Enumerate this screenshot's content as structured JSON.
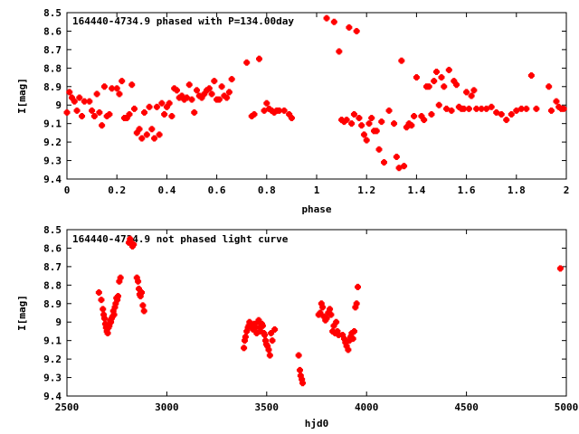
{
  "chart_data": [
    {
      "type": "scatter",
      "title": "164440-4734.9 phased with P=134.00day",
      "xlabel": "phase",
      "ylabel": "I[mag]",
      "xlim": [
        0,
        2
      ],
      "ylim": [
        8.5,
        9.4
      ],
      "y_inverted": true,
      "xticks": [
        0,
        0.2,
        0.4,
        0.6,
        0.8,
        1,
        1.2,
        1.4,
        1.6,
        1.8,
        2
      ],
      "yticks": [
        8.5,
        8.6,
        8.7,
        8.8,
        8.9,
        9,
        9.1,
        9.2,
        9.3,
        9.4
      ],
      "xtick_labels": [
        "0",
        "0.2",
        "0.4",
        "0.6",
        "0.8",
        "1",
        "1.2",
        "1.4",
        "1.6",
        "1.8",
        "2"
      ],
      "ytick_labels": [
        "8.5",
        "8.6",
        "8.7",
        "8.8",
        "8.9",
        "9",
        "9.1",
        "9.2",
        "9.3",
        "9.4"
      ],
      "color": "#ff0000",
      "grid": false,
      "points": [
        [
          0.0,
          9.04
        ],
        [
          0.01,
          8.93
        ],
        [
          0.02,
          8.96
        ],
        [
          0.03,
          8.98
        ],
        [
          0.04,
          9.03
        ],
        [
          0.05,
          8.96
        ],
        [
          0.06,
          9.06
        ],
        [
          0.07,
          8.98
        ],
        [
          0.09,
          8.98
        ],
        [
          0.1,
          9.03
        ],
        [
          0.11,
          9.06
        ],
        [
          0.12,
          8.94
        ],
        [
          0.13,
          9.04
        ],
        [
          0.14,
          9.11
        ],
        [
          0.15,
          8.9
        ],
        [
          0.16,
          9.06
        ],
        [
          0.17,
          9.05
        ],
        [
          0.18,
          8.91
        ],
        [
          0.2,
          8.91
        ],
        [
          0.21,
          8.94
        ],
        [
          0.22,
          8.87
        ],
        [
          0.23,
          9.07
        ],
        [
          0.24,
          9.07
        ],
        [
          0.25,
          9.05
        ],
        [
          0.26,
          8.89
        ],
        [
          0.27,
          9.02
        ],
        [
          0.28,
          9.15
        ],
        [
          0.29,
          9.13
        ],
        [
          0.3,
          9.18
        ],
        [
          0.31,
          9.04
        ],
        [
          0.32,
          9.16
        ],
        [
          0.33,
          9.01
        ],
        [
          0.34,
          9.13
        ],
        [
          0.35,
          9.18
        ],
        [
          0.36,
          9.01
        ],
        [
          0.37,
          9.16
        ],
        [
          0.38,
          8.99
        ],
        [
          0.39,
          9.05
        ],
        [
          0.4,
          9.01
        ],
        [
          0.41,
          8.99
        ],
        [
          0.42,
          9.06
        ],
        [
          0.43,
          8.91
        ],
        [
          0.44,
          8.92
        ],
        [
          0.45,
          8.96
        ],
        [
          0.46,
          8.95
        ],
        [
          0.47,
          8.97
        ],
        [
          0.48,
          8.96
        ],
        [
          0.49,
          8.89
        ],
        [
          0.5,
          8.97
        ],
        [
          0.51,
          9.04
        ],
        [
          0.52,
          8.92
        ],
        [
          0.53,
          8.95
        ],
        [
          0.54,
          8.96
        ],
        [
          0.55,
          8.94
        ],
        [
          0.56,
          8.92
        ],
        [
          0.57,
          8.91
        ],
        [
          0.58,
          8.94
        ],
        [
          0.59,
          8.87
        ],
        [
          0.6,
          8.97
        ],
        [
          0.61,
          8.97
        ],
        [
          0.62,
          8.9
        ],
        [
          0.63,
          8.95
        ],
        [
          0.64,
          8.96
        ],
        [
          0.65,
          8.93
        ],
        [
          0.66,
          8.86
        ],
        [
          0.72,
          8.77
        ],
        [
          0.74,
          9.06
        ],
        [
          0.75,
          9.05
        ],
        [
          0.77,
          8.75
        ],
        [
          0.79,
          9.03
        ],
        [
          0.8,
          8.99
        ],
        [
          0.81,
          9.02
        ],
        [
          0.82,
          9.03
        ],
        [
          0.83,
          9.04
        ],
        [
          0.84,
          9.03
        ],
        [
          0.85,
          9.03
        ],
        [
          0.87,
          9.03
        ],
        [
          0.89,
          9.05
        ],
        [
          0.9,
          9.07
        ],
        [
          1.04,
          8.53
        ],
        [
          1.07,
          8.55
        ],
        [
          1.09,
          8.71
        ],
        [
          1.1,
          9.08
        ],
        [
          1.11,
          9.09
        ],
        [
          1.12,
          9.08
        ],
        [
          1.13,
          8.58
        ],
        [
          1.14,
          9.1
        ],
        [
          1.15,
          9.05
        ],
        [
          1.16,
          8.6
        ],
        [
          1.17,
          9.07
        ],
        [
          1.18,
          9.11
        ],
        [
          1.19,
          9.16
        ],
        [
          1.2,
          9.19
        ],
        [
          1.21,
          9.1
        ],
        [
          1.22,
          9.07
        ],
        [
          1.23,
          9.14
        ],
        [
          1.24,
          9.14
        ],
        [
          1.25,
          9.24
        ],
        [
          1.26,
          9.09
        ],
        [
          1.27,
          9.31
        ],
        [
          1.29,
          9.03
        ],
        [
          1.31,
          9.1
        ],
        [
          1.32,
          9.28
        ],
        [
          1.33,
          9.34
        ],
        [
          1.34,
          8.76
        ],
        [
          1.35,
          9.33
        ],
        [
          1.36,
          9.12
        ],
        [
          1.37,
          9.1
        ],
        [
          1.38,
          9.11
        ],
        [
          1.39,
          9.06
        ],
        [
          1.4,
          8.85
        ],
        [
          1.42,
          9.06
        ],
        [
          1.43,
          9.08
        ],
        [
          1.44,
          8.9
        ],
        [
          1.45,
          8.9
        ],
        [
          1.46,
          9.05
        ],
        [
          1.47,
          8.87
        ],
        [
          1.48,
          8.82
        ],
        [
          1.49,
          9.0
        ],
        [
          1.5,
          8.85
        ],
        [
          1.51,
          8.9
        ],
        [
          1.52,
          9.02
        ],
        [
          1.53,
          8.81
        ],
        [
          1.54,
          9.03
        ],
        [
          1.55,
          8.87
        ],
        [
          1.56,
          8.89
        ],
        [
          1.57,
          9.01
        ],
        [
          1.58,
          9.02
        ],
        [
          1.59,
          9.02
        ],
        [
          1.6,
          8.93
        ],
        [
          1.61,
          9.02
        ],
        [
          1.62,
          8.95
        ],
        [
          1.63,
          8.92
        ],
        [
          1.64,
          9.02
        ],
        [
          1.66,
          9.02
        ],
        [
          1.68,
          9.02
        ],
        [
          1.7,
          9.01
        ],
        [
          1.72,
          9.04
        ],
        [
          1.74,
          9.05
        ],
        [
          1.76,
          9.08
        ],
        [
          1.78,
          9.05
        ],
        [
          1.8,
          9.03
        ],
        [
          1.82,
          9.02
        ],
        [
          1.84,
          9.02
        ],
        [
          1.86,
          8.84
        ],
        [
          1.88,
          9.02
        ],
        [
          1.93,
          8.9
        ],
        [
          1.94,
          9.03
        ],
        [
          1.96,
          8.98
        ],
        [
          1.97,
          9.01
        ],
        [
          1.98,
          9.02
        ],
        [
          1.99,
          9.02
        ]
      ]
    },
    {
      "type": "scatter",
      "title": "164440-4734.9 not phased light curve",
      "xlabel": "hjd0",
      "ylabel": "I[mag]",
      "xlim": [
        2500,
        5000
      ],
      "ylim": [
        8.5,
        9.4
      ],
      "y_inverted": true,
      "xticks": [
        2500,
        3000,
        3500,
        4000,
        4500,
        5000
      ],
      "yticks": [
        8.5,
        8.6,
        8.7,
        8.8,
        8.9,
        9,
        9.1,
        9.2,
        9.3,
        9.4
      ],
      "xtick_labels": [
        "2500",
        "3000",
        "3500",
        "4000",
        "4500",
        "5000"
      ],
      "ytick_labels": [
        "8.5",
        "8.6",
        "8.7",
        "8.8",
        "8.9",
        "9",
        "9.1",
        "9.2",
        "9.3",
        "9.4"
      ],
      "color": "#ff0000",
      "grid": false,
      "points": [
        [
          2660,
          8.84
        ],
        [
          2672,
          8.88
        ],
        [
          2680,
          8.93
        ],
        [
          2684,
          8.96
        ],
        [
          2688,
          8.98
        ],
        [
          2692,
          9.01
        ],
        [
          2696,
          9.03
        ],
        [
          2700,
          9.05
        ],
        [
          2704,
          9.06
        ],
        [
          2708,
          9.03
        ],
        [
          2712,
          9.02
        ],
        [
          2716,
          8.99
        ],
        [
          2720,
          9.0
        ],
        [
          2724,
          8.98
        ],
        [
          2728,
          8.97
        ],
        [
          2732,
          8.94
        ],
        [
          2736,
          8.96
        ],
        [
          2740,
          8.92
        ],
        [
          2744,
          8.9
        ],
        [
          2748,
          8.87
        ],
        [
          2752,
          8.88
        ],
        [
          2756,
          8.86
        ],
        [
          2762,
          8.78
        ],
        [
          2768,
          8.76
        ],
        [
          2810,
          8.57
        ],
        [
          2816,
          8.55
        ],
        [
          2822,
          8.57
        ],
        [
          2828,
          8.59
        ],
        [
          2834,
          8.58
        ],
        [
          2850,
          8.76
        ],
        [
          2856,
          8.78
        ],
        [
          2860,
          8.82
        ],
        [
          2864,
          8.85
        ],
        [
          2868,
          8.86
        ],
        [
          2874,
          8.84
        ],
        [
          2880,
          8.91
        ],
        [
          2886,
          8.94
        ],
        [
          3386,
          9.14
        ],
        [
          3390,
          9.1
        ],
        [
          3394,
          9.08
        ],
        [
          3400,
          9.05
        ],
        [
          3406,
          9.03
        ],
        [
          3410,
          9.02
        ],
        [
          3414,
          9.0
        ],
        [
          3420,
          9.01
        ],
        [
          3426,
          9.02
        ],
        [
          3432,
          9.04
        ],
        [
          3438,
          9.01
        ],
        [
          3444,
          9.03
        ],
        [
          3450,
          9.06
        ],
        [
          3456,
          9.0
        ],
        [
          3460,
          8.99
        ],
        [
          3466,
          9.03
        ],
        [
          3470,
          9.05
        ],
        [
          3476,
          9.01
        ],
        [
          3480,
          9.02
        ],
        [
          3486,
          9.06
        ],
        [
          3490,
          9.07
        ],
        [
          3494,
          9.1
        ],
        [
          3498,
          9.12
        ],
        [
          3504,
          9.13
        ],
        [
          3510,
          9.15
        ],
        [
          3516,
          9.18
        ],
        [
          3522,
          9.06
        ],
        [
          3528,
          9.1
        ],
        [
          3540,
          9.04
        ],
        [
          3660,
          9.18
        ],
        [
          3666,
          9.26
        ],
        [
          3670,
          9.29
        ],
        [
          3676,
          9.31
        ],
        [
          3680,
          9.33
        ],
        [
          3760,
          8.96
        ],
        [
          3768,
          8.95
        ],
        [
          3774,
          8.9
        ],
        [
          3780,
          8.92
        ],
        [
          3786,
          8.97
        ],
        [
          3794,
          8.99
        ],
        [
          3800,
          8.98
        ],
        [
          3808,
          8.95
        ],
        [
          3816,
          8.93
        ],
        [
          3822,
          8.96
        ],
        [
          3830,
          9.05
        ],
        [
          3836,
          9.02
        ],
        [
          3842,
          9.06
        ],
        [
          3848,
          9.0
        ],
        [
          3854,
          9.05
        ],
        [
          3860,
          9.07
        ],
        [
          3880,
          9.07
        ],
        [
          3888,
          9.09
        ],
        [
          3894,
          9.11
        ],
        [
          3900,
          9.13
        ],
        [
          3908,
          9.15
        ],
        [
          3914,
          9.1
        ],
        [
          3920,
          9.08
        ],
        [
          3926,
          9.06
        ],
        [
          3932,
          9.09
        ],
        [
          3938,
          9.05
        ],
        [
          3944,
          8.92
        ],
        [
          3950,
          8.9
        ],
        [
          3956,
          8.81
        ],
        [
          4970,
          8.71
        ]
      ]
    }
  ]
}
